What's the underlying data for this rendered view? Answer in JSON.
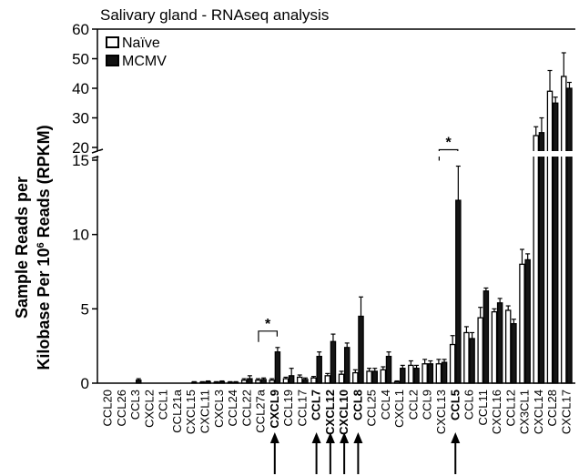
{
  "chart_data": {
    "type": "bar",
    "title": "Salivary gland - RNAseq analysis",
    "ylabel_line1": "Sample Reads per",
    "ylabel_line2_pre": "Kilobase Per 10",
    "ylabel_line2_sup": "6",
    "ylabel_line2_post": " Reads (RPKM)",
    "axis_break": true,
    "ylim_lower": [
      0,
      15
    ],
    "ylim_upper": [
      20,
      60
    ],
    "yticks_lower": [
      0,
      5,
      10,
      15
    ],
    "yticks_upper": [
      20,
      30,
      40,
      50,
      60
    ],
    "legend_position": "top-left",
    "categories": [
      "CCL20",
      "CCL26",
      "CCL3",
      "CXCL2",
      "CCL1",
      "CCL21a",
      "CXCL15",
      "CXCL11",
      "CXCL3",
      "CCL24",
      "CCL22",
      "CCL27a",
      "CXCL9",
      "CCL19",
      "CCL17",
      "CCL7",
      "CXCL12",
      "CXCL10",
      "CCL8",
      "CCL25",
      "CCL4",
      "CXCL1",
      "CCL2",
      "CCL9",
      "CXCL13",
      "CCL5",
      "CCL6",
      "CCL11",
      "CXCL16",
      "CCL12",
      "CX3CL1",
      "CXCL14",
      "CCL28",
      "CXCL17"
    ],
    "highlighted": [
      "CXCL9",
      "CCL7",
      "CXCL12",
      "CXCL10",
      "CCL8",
      "CCL5"
    ],
    "series": [
      {
        "name": "Naïve",
        "values": [
          0,
          0,
          0,
          0,
          0,
          0,
          0,
          0.05,
          0.05,
          0.05,
          0.2,
          0.2,
          0.2,
          0.3,
          0.4,
          0.35,
          0.5,
          0.6,
          0.7,
          0.8,
          0.9,
          0.1,
          1.2,
          1.3,
          1.3,
          2.6,
          3.4,
          4.4,
          4.8,
          4.9,
          8.0,
          24,
          39,
          44
        ],
        "errors": [
          0,
          0,
          0,
          0,
          0,
          0,
          0,
          0.05,
          0.05,
          0.05,
          0.1,
          0.1,
          0.1,
          0.1,
          0.15,
          0.1,
          0.15,
          0.2,
          0.2,
          0.2,
          0.2,
          0.05,
          0.3,
          0.3,
          0.3,
          0.6,
          0.4,
          0.7,
          0.2,
          0.3,
          1.0,
          3,
          7,
          8
        ]
      },
      {
        "name": "MCMV",
        "values": [
          0,
          0,
          0.2,
          0,
          0,
          0,
          0.05,
          0.1,
          0.1,
          0.05,
          0.3,
          0.25,
          2.1,
          0.5,
          0.25,
          1.8,
          2.8,
          2.4,
          4.5,
          0.8,
          1.8,
          1.0,
          1.0,
          1.3,
          1.4,
          12.3,
          3.0,
          6.2,
          5.4,
          4.0,
          8.3,
          25,
          35,
          40
        ],
        "errors": [
          0,
          0,
          0.1,
          0,
          0,
          0,
          0.05,
          0.05,
          0.05,
          0.05,
          0.2,
          0.1,
          0.3,
          0.5,
          0.1,
          0.3,
          0.5,
          0.3,
          1.3,
          0.2,
          0.3,
          0.2,
          0.2,
          0.2,
          0.2,
          2.3,
          0.4,
          0.2,
          0.3,
          0.3,
          0.4,
          5,
          2,
          2
        ]
      }
    ],
    "significance": [
      {
        "label": "*",
        "between": [
          "CCL27a",
          "CXCL9"
        ]
      },
      {
        "label": "*",
        "between": [
          "CXCL13",
          "CCL5"
        ]
      }
    ]
  }
}
